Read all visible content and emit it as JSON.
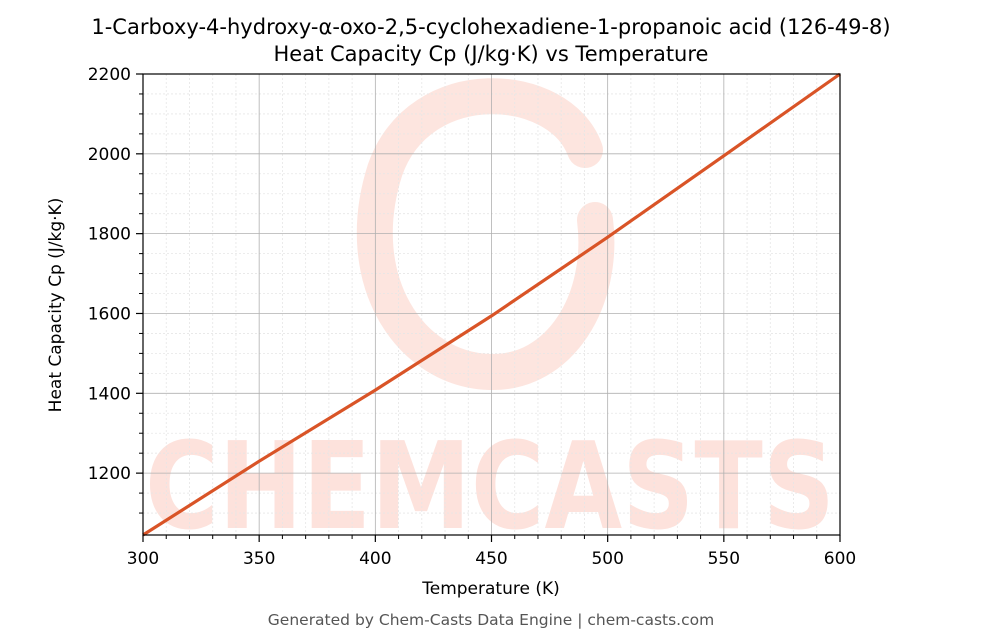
{
  "chart_data": {
    "type": "line",
    "title": "1-Carboxy-4-hydroxy-α-oxo-2,5-cyclohexadiene-1-propanoic acid (126-49-8)",
    "subtitle": "Heat Capacity Cp (J/kg·K) vs Temperature",
    "xlabel": "Temperature (K)",
    "ylabel": "Heat Capacity Cp (J/kg·K)",
    "xlim": [
      300,
      600
    ],
    "ylim": [
      1045,
      2200
    ],
    "xticks": [
      300,
      350,
      400,
      450,
      500,
      550,
      600
    ],
    "yticks": [
      1200,
      1400,
      1600,
      1800,
      2000,
      2200
    ],
    "grid": true,
    "series": [
      {
        "x": [
          300,
          350,
          400,
          450,
          500,
          550,
          600
        ],
        "y": [
          1045,
          1230,
          1408,
          1594,
          1791,
          1995,
          2200
        ]
      }
    ],
    "line_color": "#d95427"
  },
  "watermark": {
    "text": "CHEMCASTS",
    "color": "#fde2dc"
  },
  "footer": "Generated by Chem-Casts Data Engine | chem-casts.com"
}
